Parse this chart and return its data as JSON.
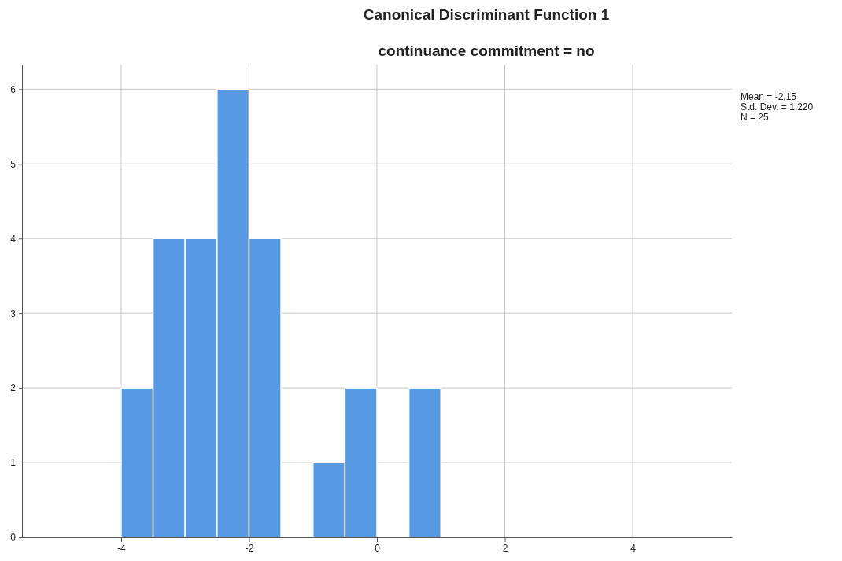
{
  "chart_data": {
    "type": "histogram",
    "title": "Canonical Discriminant Function 1",
    "subtitle": "continuance commitment = no",
    "bins": [
      -4,
      -3.5,
      -3,
      -2.5,
      -2,
      -1.5,
      -1,
      -0.5,
      0,
      0.5,
      1
    ],
    "values": [
      2,
      4,
      4,
      6,
      4,
      0,
      1,
      2,
      0,
      2
    ],
    "color": "#5899e3",
    "xlim": [
      -5.55,
      5.55
    ],
    "xticks": [
      -4,
      -2,
      0,
      2,
      4
    ],
    "ylim": [
      0,
      6.33
    ],
    "yticks": [
      0,
      1,
      2,
      3,
      4,
      5,
      6
    ],
    "grid": true,
    "annotations": [
      "Mean = -2,15",
      "Std. Dev. = 1,220",
      "N = 25"
    ]
  }
}
